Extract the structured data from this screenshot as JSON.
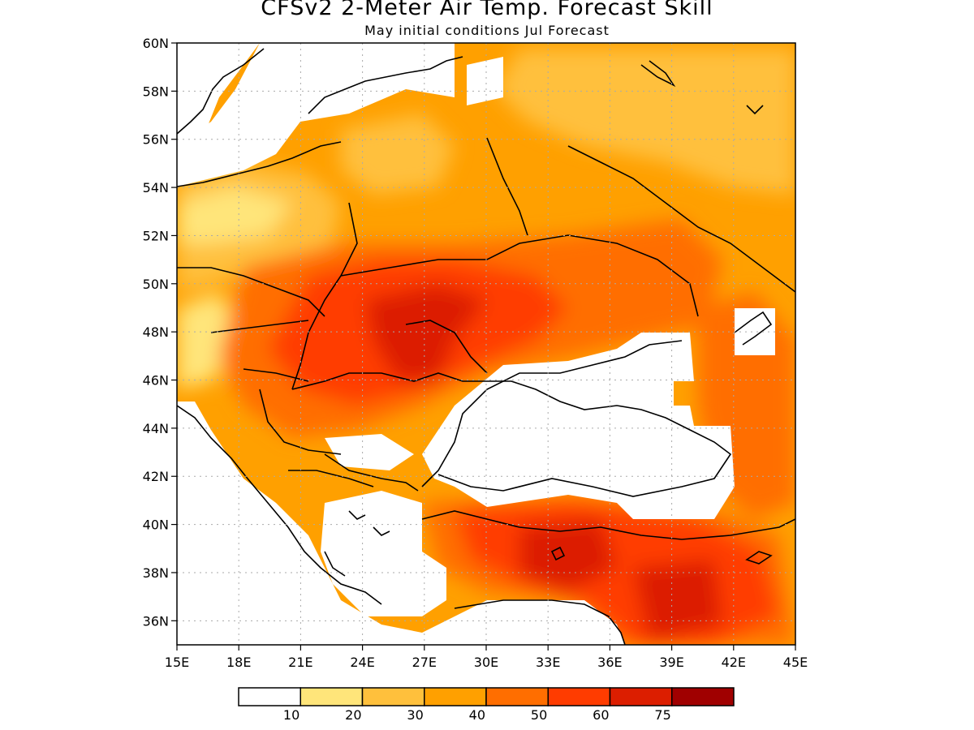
{
  "title": "CFSv2 2-Meter Air Temp. Forecast Skill",
  "subtitle": "May initial conditions   Jul Forecast",
  "map": {
    "lon_range": [
      15,
      45
    ],
    "lat_range": [
      35,
      60
    ],
    "lon_ticks": [
      "15E",
      "18E",
      "21E",
      "24E",
      "27E",
      "30E",
      "33E",
      "36E",
      "39E",
      "42E",
      "45E"
    ],
    "lat_ticks": [
      "60N",
      "58N",
      "56N",
      "54N",
      "52N",
      "50N",
      "48N",
      "46N",
      "44N",
      "42N",
      "40N",
      "38N",
      "36N"
    ],
    "grid": true
  },
  "colorbar": {
    "colors": [
      "#ffffff",
      "#ffe57a",
      "#ffc03c",
      "#ffa000",
      "#ff6e00",
      "#ff3c00",
      "#dc1e00",
      "#a00000"
    ],
    "labels": [
      "10",
      "20",
      "30",
      "40",
      "50",
      "60",
      "75"
    ]
  }
}
